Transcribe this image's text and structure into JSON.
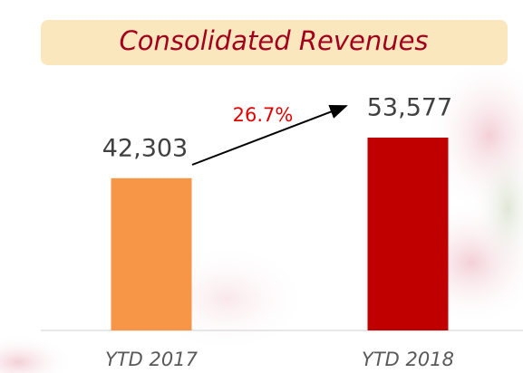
{
  "chart_data": {
    "type": "bar",
    "title": "Consolidated Revenues",
    "categories": [
      "YTD 2017",
      "YTD 2018"
    ],
    "series": [
      {
        "values": [
          42303,
          53577
        ],
        "value_labels": [
          "42,303",
          "53,577"
        ],
        "colors": [
          "#f79646",
          "#c00000"
        ]
      }
    ],
    "annotation": "26.7%"
  }
}
